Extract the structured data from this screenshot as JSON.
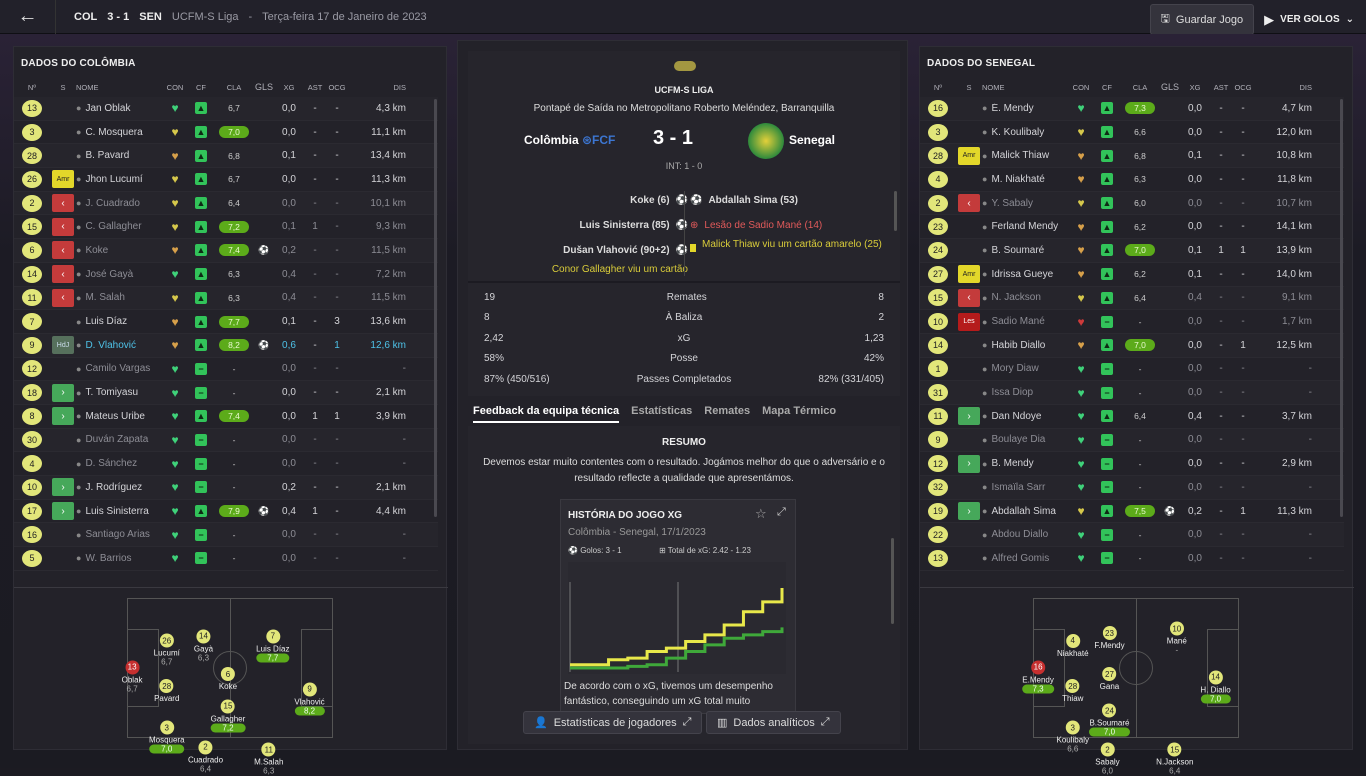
{
  "topbar": {
    "team1": "COL",
    "score": "3 - 1",
    "team2": "SEN",
    "league": "UCFM-S Liga",
    "sep": "-",
    "date": "Terça-feira 17 de Janeiro de 2023",
    "save": "Guardar Jogo",
    "goals": "VER GOLOS"
  },
  "left": {
    "title": "DADOS DO COLÔMBIA"
  },
  "right": {
    "title": "DADOS DO SENEGAL"
  },
  "cols": {
    "n": "Nº",
    "s": "S",
    "name": "NOME",
    "con": "CON",
    "cf": "CF",
    "cla": "CLA",
    "gls": "GLS",
    "xg": "XG",
    "ast": "AST",
    "ocg": "OCG",
    "dis": "DIS"
  },
  "col_players": [
    {
      "n": "13",
      "s": "",
      "name": "Jan Oblak",
      "con": "g",
      "cla": "6,7",
      "hi": false,
      "gl": "",
      "xg": "0,0",
      "ast": "-",
      "ocg": "-",
      "dis": "4,3 km",
      "dim": false
    },
    {
      "n": "3",
      "s": "",
      "name": "C. Mosquera",
      "con": "y",
      "cla": "7,0",
      "hi": true,
      "gl": "",
      "xg": "0,0",
      "ast": "-",
      "ocg": "-",
      "dis": "11,1 km",
      "dim": false
    },
    {
      "n": "28",
      "s": "",
      "name": "B. Pavard",
      "con": "o",
      "cla": "6,8",
      "hi": false,
      "gl": "",
      "xg": "0,1",
      "ast": "-",
      "ocg": "-",
      "dis": "13,4 km",
      "dim": false
    },
    {
      "n": "26",
      "s": "amr",
      "name": "Jhon Lucumí",
      "con": "y",
      "cla": "6,7",
      "hi": false,
      "gl": "",
      "xg": "0,0",
      "ast": "-",
      "ocg": "-",
      "dis": "11,3 km",
      "dim": false
    },
    {
      "n": "2",
      "s": "out",
      "name": "J. Cuadrado",
      "con": "y",
      "cla": "6,4",
      "hi": false,
      "gl": "",
      "xg": "0,0",
      "ast": "-",
      "ocg": "-",
      "dis": "10,1 km",
      "dim": true
    },
    {
      "n": "15",
      "s": "out",
      "name": "C. Gallagher",
      "con": "y",
      "cla": "7,2",
      "hi": true,
      "gl": "",
      "xg": "0,1",
      "ast": "1",
      "ocg": "-",
      "dis": "9,3 km",
      "dim": true
    },
    {
      "n": "6",
      "s": "out",
      "name": "Koke",
      "con": "o",
      "cla": "7,4",
      "hi": true,
      "gl": "⚽",
      "xg": "0,2",
      "ast": "-",
      "ocg": "-",
      "dis": "11,5 km",
      "dim": true
    },
    {
      "n": "14",
      "s": "out",
      "name": "José Gayà",
      "con": "g",
      "cla": "6,3",
      "hi": false,
      "gl": "",
      "xg": "0,4",
      "ast": "-",
      "ocg": "-",
      "dis": "7,2 km",
      "dim": true
    },
    {
      "n": "11",
      "s": "out",
      "name": "M. Salah",
      "con": "y",
      "cla": "6,3",
      "hi": false,
      "gl": "",
      "xg": "0,4",
      "ast": "-",
      "ocg": "-",
      "dis": "11,5 km",
      "dim": true
    },
    {
      "n": "7",
      "s": "",
      "name": "Luis Díaz",
      "con": "o",
      "cla": "7,7",
      "hi": true,
      "gl": "",
      "xg": "0,1",
      "ast": "-",
      "ocg": "3",
      "dis": "13,6 km",
      "dim": false
    },
    {
      "n": "9",
      "s": "hdj",
      "name": "D. Vlahović",
      "con": "o",
      "cla": "8,2",
      "hi": true,
      "gl": "⚽",
      "xg": "0,6",
      "ast": "-",
      "ocg": "1",
      "dis": "12,6 km",
      "dim": false,
      "cyan": true
    },
    {
      "n": "12",
      "s": "",
      "name": "Camilo Vargas",
      "con": "g",
      "cla": "-",
      "hi": false,
      "gl": "",
      "xg": "0,0",
      "ast": "-",
      "ocg": "-",
      "dis": "-",
      "dim": true
    },
    {
      "n": "18",
      "s": "in",
      "name": "T. Tomiyasu",
      "con": "g",
      "cla": "-",
      "hi": false,
      "gl": "",
      "xg": "0,0",
      "ast": "-",
      "ocg": "-",
      "dis": "2,1 km",
      "dim": false
    },
    {
      "n": "8",
      "s": "in",
      "name": "Mateus Uribe",
      "con": "g",
      "cla": "7,4",
      "hi": true,
      "gl": "",
      "xg": "0,0",
      "ast": "1",
      "ocg": "1",
      "dis": "3,9 km",
      "dim": false
    },
    {
      "n": "30",
      "s": "",
      "name": "Duván Zapata",
      "con": "g",
      "cla": "-",
      "hi": false,
      "gl": "",
      "xg": "0,0",
      "ast": "-",
      "ocg": "-",
      "dis": "-",
      "dim": true
    },
    {
      "n": "4",
      "s": "",
      "name": "D. Sánchez",
      "con": "g",
      "cla": "-",
      "hi": false,
      "gl": "",
      "xg": "0,0",
      "ast": "-",
      "ocg": "-",
      "dis": "-",
      "dim": true
    },
    {
      "n": "10",
      "s": "in",
      "name": "J. Rodríguez",
      "con": "g",
      "cla": "-",
      "hi": false,
      "gl": "",
      "xg": "0,2",
      "ast": "-",
      "ocg": "-",
      "dis": "2,1 km",
      "dim": false
    },
    {
      "n": "17",
      "s": "in",
      "name": "Luis Sinisterra",
      "con": "g",
      "cla": "7,9",
      "hi": true,
      "gl": "⚽",
      "xg": "0,4",
      "ast": "1",
      "ocg": "-",
      "dis": "4,4 km",
      "dim": false
    },
    {
      "n": "16",
      "s": "",
      "name": "Santiago Arias",
      "con": "g",
      "cla": "-",
      "hi": false,
      "gl": "",
      "xg": "0,0",
      "ast": "-",
      "ocg": "-",
      "dis": "-",
      "dim": true
    },
    {
      "n": "5",
      "s": "",
      "name": "W. Barrios",
      "con": "g",
      "cla": "-",
      "hi": false,
      "gl": "",
      "xg": "0,0",
      "ast": "-",
      "ocg": "-",
      "dis": "-",
      "dim": true
    }
  ],
  "sen_players": [
    {
      "n": "16",
      "s": "",
      "name": "É. Mendy",
      "con": "g",
      "cla": "7,3",
      "hi": true,
      "gl": "",
      "xg": "0,0",
      "ast": "-",
      "ocg": "-",
      "dis": "4,7 km",
      "dim": false
    },
    {
      "n": "3",
      "s": "",
      "name": "K. Koulibaly",
      "con": "y",
      "cla": "6,6",
      "hi": false,
      "gl": "",
      "xg": "0,0",
      "ast": "-",
      "ocg": "-",
      "dis": "12,0 km",
      "dim": false
    },
    {
      "n": "28",
      "s": "amr",
      "name": "Malick Thiaw",
      "con": "o",
      "cla": "6,8",
      "hi": false,
      "gl": "",
      "xg": "0,1",
      "ast": "-",
      "ocg": "-",
      "dis": "10,8 km",
      "dim": false
    },
    {
      "n": "4",
      "s": "",
      "name": "M. Niakhaté",
      "con": "o",
      "cla": "6,3",
      "hi": false,
      "gl": "",
      "xg": "0,0",
      "ast": "-",
      "ocg": "-",
      "dis": "11,8 km",
      "dim": false
    },
    {
      "n": "2",
      "s": "out",
      "name": "Y. Sabaly",
      "con": "y",
      "cla": "6,0",
      "hi": false,
      "gl": "",
      "xg": "0,0",
      "ast": "-",
      "ocg": "-",
      "dis": "10,7 km",
      "dim": true
    },
    {
      "n": "23",
      "s": "",
      "name": "Ferland Mendy",
      "con": "o",
      "cla": "6,2",
      "hi": false,
      "gl": "",
      "xg": "0,0",
      "ast": "-",
      "ocg": "-",
      "dis": "14,1 km",
      "dim": false
    },
    {
      "n": "24",
      "s": "",
      "name": "B. Soumaré",
      "con": "o",
      "cla": "7,0",
      "hi": true,
      "gl": "",
      "xg": "0,1",
      "ast": "1",
      "ocg": "1",
      "dis": "13,9 km",
      "dim": false
    },
    {
      "n": "27",
      "s": "amr",
      "name": "Idrissa Gueye",
      "con": "o",
      "cla": "6,2",
      "hi": false,
      "gl": "",
      "xg": "0,1",
      "ast": "-",
      "ocg": "-",
      "dis": "14,0 km",
      "dim": false
    },
    {
      "n": "15",
      "s": "out",
      "name": "N. Jackson",
      "con": "y",
      "cla": "6,4",
      "hi": false,
      "gl": "",
      "xg": "0,4",
      "ast": "-",
      "ocg": "-",
      "dis": "9,1 km",
      "dim": true
    },
    {
      "n": "10",
      "s": "les",
      "name": "Sadio Mané",
      "con": "r",
      "cla": "-",
      "hi": false,
      "gl": "",
      "xg": "0,0",
      "ast": "-",
      "ocg": "-",
      "dis": "1,7 km",
      "dim": true
    },
    {
      "n": "14",
      "s": "",
      "name": "Habib Diallo",
      "con": "o",
      "cla": "7,0",
      "hi": true,
      "gl": "",
      "xg": "0,0",
      "ast": "-",
      "ocg": "1",
      "dis": "12,5 km",
      "dim": false
    },
    {
      "n": "1",
      "s": "",
      "name": "Mory Diaw",
      "con": "g",
      "cla": "-",
      "hi": false,
      "gl": "",
      "xg": "0,0",
      "ast": "-",
      "ocg": "-",
      "dis": "-",
      "dim": true
    },
    {
      "n": "31",
      "s": "",
      "name": "Issa Diop",
      "con": "g",
      "cla": "-",
      "hi": false,
      "gl": "",
      "xg": "0,0",
      "ast": "-",
      "ocg": "-",
      "dis": "-",
      "dim": true
    },
    {
      "n": "11",
      "s": "in",
      "name": "Dan Ndoye",
      "con": "g",
      "cla": "6,4",
      "hi": false,
      "gl": "",
      "xg": "0,4",
      "ast": "-",
      "ocg": "-",
      "dis": "3,7 km",
      "dim": false
    },
    {
      "n": "9",
      "s": "",
      "name": "Boulaye Dia",
      "con": "g",
      "cla": "-",
      "hi": false,
      "gl": "",
      "xg": "0,0",
      "ast": "-",
      "ocg": "-",
      "dis": "-",
      "dim": true
    },
    {
      "n": "12",
      "s": "in",
      "name": "B. Mendy",
      "con": "g",
      "cla": "-",
      "hi": false,
      "gl": "",
      "xg": "0,0",
      "ast": "-",
      "ocg": "-",
      "dis": "2,9 km",
      "dim": false
    },
    {
      "n": "32",
      "s": "",
      "name": "Ismaïla Sarr",
      "con": "g",
      "cla": "-",
      "hi": false,
      "gl": "",
      "xg": "0,0",
      "ast": "-",
      "ocg": "-",
      "dis": "-",
      "dim": true
    },
    {
      "n": "19",
      "s": "in",
      "name": "Abdallah Sima",
      "con": "y",
      "cla": "7,5",
      "hi": true,
      "gl": "⚽",
      "xg": "0,2",
      "ast": "-",
      "ocg": "1",
      "dis": "11,3 km",
      "dim": false
    },
    {
      "n": "22",
      "s": "",
      "name": "Abdou Diallo",
      "con": "g",
      "cla": "-",
      "hi": false,
      "gl": "",
      "xg": "0,0",
      "ast": "-",
      "ocg": "-",
      "dis": "-",
      "dim": true
    },
    {
      "n": "13",
      "s": "",
      "name": "Alfred Gomis",
      "con": "g",
      "cla": "-",
      "hi": false,
      "gl": "",
      "xg": "0,0",
      "ast": "-",
      "ocg": "-",
      "dis": "-",
      "dim": true
    }
  ],
  "col_pitch": [
    {
      "n": "13",
      "name": "Oblak",
      "r": "6,7",
      "gk": true,
      "hi": false
    },
    {
      "n": "26",
      "name": "Lucumí",
      "r": "6,7",
      "gk": false,
      "hi": false
    },
    {
      "n": "28",
      "name": "Pavard",
      "r": "",
      "gk": false,
      "hi": false
    },
    {
      "n": "3",
      "name": "Mosquera",
      "r": "7,0",
      "gk": false,
      "hi": true
    },
    {
      "n": "14",
      "name": "Gayà",
      "r": "6,3",
      "gk": false,
      "hi": false
    },
    {
      "n": "6",
      "name": "Koke",
      "r": "",
      "gk": false,
      "hi": false
    },
    {
      "n": "15",
      "name": "Gallagher",
      "r": "7,2",
      "gk": false,
      "hi": true
    },
    {
      "n": "2",
      "name": "Cuadrado",
      "r": "6,4",
      "gk": false,
      "hi": false
    },
    {
      "n": "7",
      "name": "Luis Díaz",
      "r": "7,7",
      "gk": false,
      "hi": true
    },
    {
      "n": "11",
      "name": "M.Salah",
      "r": "6,3",
      "gk": false,
      "hi": false
    },
    {
      "n": "9",
      "name": "Vlahović",
      "r": "8,2",
      "gk": false,
      "hi": true
    }
  ],
  "sen_pitch": [
    {
      "n": "16",
      "name": "E.Mendy",
      "r": "7,3",
      "gk": true,
      "hi": true
    },
    {
      "n": "4",
      "name": "Niakhaté",
      "r": "",
      "gk": false,
      "hi": false
    },
    {
      "n": "28",
      "name": "Thiaw",
      "r": "",
      "gk": false,
      "hi": false
    },
    {
      "n": "3",
      "name": "Koulibaly",
      "r": "6,6",
      "gk": false,
      "hi": false
    },
    {
      "n": "23",
      "name": "F.Mendy",
      "r": "",
      "gk": false,
      "hi": false
    },
    {
      "n": "27",
      "name": "Gana",
      "r": "",
      "gk": false,
      "hi": false
    },
    {
      "n": "24",
      "name": "B.Soumaré",
      "r": "7,0",
      "gk": false,
      "hi": true
    },
    {
      "n": "2",
      "name": "Sabaly",
      "r": "6,0",
      "gk": false,
      "hi": false
    },
    {
      "n": "10",
      "name": "Mané",
      "r": "-",
      "gk": false,
      "hi": false
    },
    {
      "n": "14",
      "name": "H. Diallo",
      "r": "7,0",
      "gk": false,
      "hi": true
    },
    {
      "n": "15",
      "name": "N.Jackson",
      "r": "6,4",
      "gk": false,
      "hi": false
    }
  ],
  "match": {
    "league": "UCFM-S LIGA",
    "kickoff": "Pontapé de Saída no Metropolitano Roberto Meléndez, Barranquilla",
    "home": "Colômbia",
    "away": "Senegal",
    "score": "3 - 1",
    "ht": "INT: 1 - 0",
    "home_events": [
      "Koke (6)",
      "Luis Sinisterra (85)",
      "Dušan Vlahović (90+2)",
      "Conor Gallagher viu um cartão"
    ],
    "away_events": [
      "Abdallah Sima (53)",
      "Lesão de Sadio Mané (14)",
      "Malick Thiaw viu um cartão amarelo (25)"
    ]
  },
  "stats": [
    {
      "h": "19",
      "l": "Remates",
      "a": "8"
    },
    {
      "h": "8",
      "l": "À Baliza",
      "a": "2"
    },
    {
      "h": "2,42",
      "l": "xG",
      "a": "1,23"
    },
    {
      "h": "58%",
      "l": "Posse",
      "a": "42%"
    },
    {
      "h": "87% (450/516)",
      "l": "Passes Completados",
      "a": "82% (331/405)"
    }
  ],
  "tabs": [
    "Feedback da equipa técnica",
    "Estatísticas",
    "Remates",
    "Mapa Térmico"
  ],
  "feedback": {
    "title": "RESUMO",
    "text": "Devemos estar muito contentes com o resultado. Jogámos melhor do que o adversário e o resultado reflecte a qualidade que apresentámos."
  },
  "xgcard": {
    "title": "HISTÓRIA DO JOGO XG",
    "sub": "Colômbia - Senegal, 17/1/2023",
    "goals": "Golos: 3 - 1",
    "total": "Total de xG: 2.42 - 1.23",
    "text": "De acordo com o xG, tivemos um desempenho fantástico, conseguindo um xG total muito"
  },
  "chart_data": {
    "type": "line",
    "series": [
      {
        "values": [
          0.1,
          0.1,
          0.25,
          0.3,
          0.5,
          0.6,
          0.8,
          1.0,
          1.3,
          1.7,
          2.0,
          2.42
        ]
      },
      {
        "values": [
          0,
          0,
          0,
          0.05,
          0.1,
          0.3,
          0.5,
          0.7,
          0.9,
          1.0,
          1.1,
          1.23
        ]
      }
    ],
    "colors": [
      "#e8e84a",
      "#3fa83a"
    ]
  },
  "bottom": {
    "b1": "Estatísticas de jogadores",
    "b2": "Dados analíticos"
  }
}
